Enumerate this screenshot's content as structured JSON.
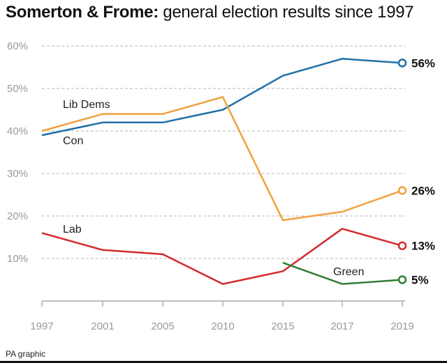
{
  "title": {
    "bold": "Somerton & Frome:",
    "regular": "general election results since 1997"
  },
  "credit": "PA graphic",
  "chart_data": {
    "type": "line",
    "title": "Somerton & Frome: general election results since 1997",
    "x": [
      1997,
      2001,
      2005,
      2010,
      2015,
      2017,
      2019
    ],
    "x_tick_labels": [
      "1997",
      "2001",
      "2005",
      "2010",
      "2015",
      "2017",
      "2019"
    ],
    "ylim": [
      0,
      60
    ],
    "y_ticks": [
      10,
      20,
      30,
      40,
      50,
      60
    ],
    "y_tick_labels": [
      "10%",
      "20%",
      "30%",
      "40%",
      "50%",
      "60%"
    ],
    "grid": "horizontal dashed",
    "series": [
      {
        "name": "Con",
        "color": "#1f6fa8",
        "x": [
          1997,
          2001,
          2005,
          2010,
          2015,
          2017,
          2019
        ],
        "values": [
          39,
          42,
          42,
          45,
          53,
          57,
          56
        ],
        "end_label": "56%"
      },
      {
        "name": "Lib Dems",
        "color": "#f0a23e",
        "x": [
          1997,
          2001,
          2005,
          2010,
          2015,
          2017,
          2019
        ],
        "values": [
          40,
          44,
          44,
          48,
          19,
          21,
          26
        ],
        "end_label": "26%"
      },
      {
        "name": "Lab",
        "color": "#d32a2a",
        "x": [
          1997,
          2001,
          2005,
          2010,
          2015,
          2017,
          2019
        ],
        "values": [
          16,
          12,
          11,
          4,
          7,
          17,
          13
        ],
        "end_label": "13%"
      },
      {
        "name": "Green",
        "color": "#2e7d32",
        "x": [
          2015,
          2017,
          2019
        ],
        "values": [
          9,
          4,
          5
        ],
        "end_label": "5%"
      }
    ]
  }
}
